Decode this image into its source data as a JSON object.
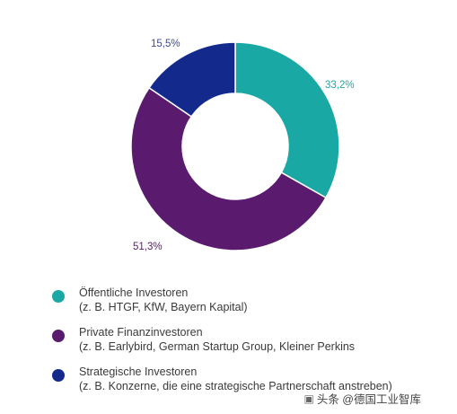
{
  "chart_data": {
    "type": "pie",
    "donut": true,
    "title": "",
    "slices": [
      {
        "label": "Öffentliche Investoren",
        "value": 33.2,
        "value_label": "33,2%",
        "color": "#1aa8a5"
      },
      {
        "label": "Private Finanzinvestoren",
        "value": 51.3,
        "value_label": "51,3%",
        "color": "#5a1a6e"
      },
      {
        "label": "Strategische Investoren",
        "value": 15.5,
        "value_label": "15,5%",
        "color": "#132a8c"
      }
    ],
    "legend_position": "bottom"
  },
  "legend": [
    {
      "title": "Öffentliche Investoren",
      "sub": "(z. B. HTGF, KfW, Bayern Kapital)",
      "color": "#1aa8a5"
    },
    {
      "title": "Private Finanzinvestoren",
      "sub": "(z. B. Earlybird, German Startup Group, Kleiner Perkins",
      "color": "#5a1a6e"
    },
    {
      "title": "Strategische Investoren",
      "sub": "(z. B. Konzerne, die eine strategische Partnerschaft anstreben)",
      "color": "#132a8c"
    }
  ],
  "watermark": {
    "text": "头条 @德国工业智库"
  },
  "label_colors": {
    "0": "#1aa8a5",
    "1": "#5a1a6e",
    "2": "#3a4a9a"
  }
}
